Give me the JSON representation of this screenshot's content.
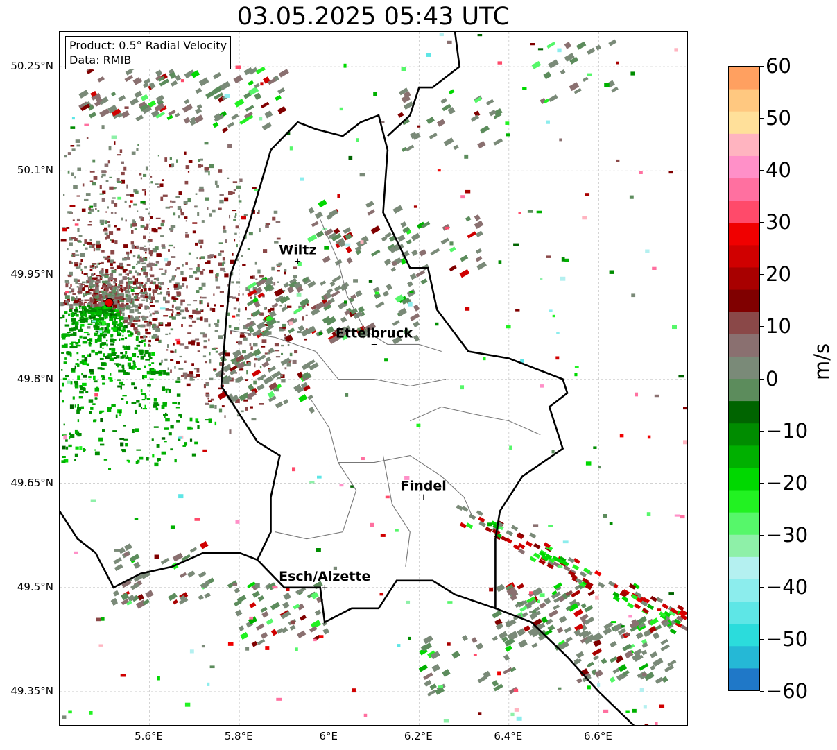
{
  "title": "03.05.2025 05:43 UTC",
  "info": {
    "product": "Product: 0.5° Radial Velocity",
    "data": "Data: RMIB"
  },
  "axes": {
    "lat_ticks": [
      "50.25°N",
      "50.1°N",
      "49.95°N",
      "49.8°N",
      "49.65°N",
      "49.5°N",
      "49.35°N"
    ],
    "lon_ticks": [
      "5.6°E",
      "5.8°E",
      "6°E",
      "6.2°E",
      "6.4°E",
      "6.6°E"
    ]
  },
  "cities": [
    {
      "name": "Wiltz",
      "lon": 5.93,
      "lat": 49.97
    },
    {
      "name": "Ettelbruck",
      "lon": 6.1,
      "lat": 49.85
    },
    {
      "name": "Findel",
      "lon": 6.21,
      "lat": 49.63
    },
    {
      "name": "Esch/Alzette",
      "lon": 5.99,
      "lat": 49.5
    }
  ],
  "radar_site": {
    "lon": 5.51,
    "lat": 49.91,
    "color": "#e00000"
  },
  "colorbar": {
    "unit": "m/s",
    "min": -60,
    "max": 60,
    "tick_labels": [
      "60",
      "50",
      "40",
      "30",
      "20",
      "10",
      "0",
      "−10",
      "−20",
      "−30",
      "−40",
      "−50",
      "−60"
    ],
    "colors_bottom_to_top": [
      "#1f78c8",
      "#25b8d6",
      "#2bdcdc",
      "#5ee6e6",
      "#8ceded",
      "#b4f0f0",
      "#8ef0a8",
      "#56f76a",
      "#22f222",
      "#00d800",
      "#00b000",
      "#008c00",
      "#006400",
      "#5c8c5c",
      "#7a8a78",
      "#8a7070",
      "#8a4848",
      "#800000",
      "#a80000",
      "#d00000",
      "#f00000",
      "#ff4a6a",
      "#ff70a0",
      "#ff90c8",
      "#ffb4c0",
      "#ffe09a",
      "#ffc880",
      "#ffa060"
    ]
  }
}
